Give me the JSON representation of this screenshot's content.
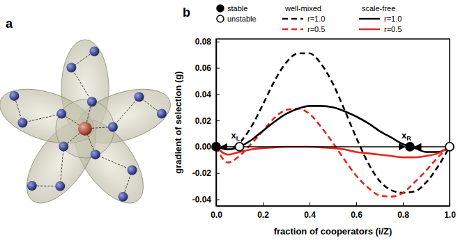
{
  "diagram": {
    "label": "a"
  },
  "chart_data": {
    "type": "line",
    "panel_label": "b",
    "x_label": "fraction of cooperators (i/Z)",
    "y_label": "gradient of selection (g)",
    "x": [
      0,
      0.05,
      0.1,
      0.15,
      0.2,
      0.25,
      0.3,
      0.35,
      0.4,
      0.45,
      0.5,
      0.55,
      0.6,
      0.65,
      0.7,
      0.75,
      0.8,
      0.85,
      0.9,
      0.95,
      1
    ],
    "groups": [
      "well-mixed",
      "scale-free"
    ],
    "series": [
      {
        "name": "r=1.0",
        "group": "well-mixed",
        "color": "#000000",
        "line_style": "dashed",
        "values": [
          0,
          -0.002,
          0.003,
          0.015,
          0.032,
          0.05,
          0.064,
          0.071,
          0.071,
          0.063,
          0.048,
          0.028,
          0.007,
          -0.012,
          -0.026,
          -0.033,
          -0.035,
          -0.034,
          -0.027,
          -0.015,
          0
        ]
      },
      {
        "name": "r=0.5",
        "group": "well-mixed",
        "color": "#e8231a",
        "line_style": "dashed",
        "values": [
          0,
          -0.012,
          -0.007,
          0.002,
          0.012,
          0.022,
          0.028,
          0.029,
          0.025,
          0.015,
          0.003,
          -0.01,
          -0.022,
          -0.031,
          -0.037,
          -0.038,
          -0.035,
          -0.027,
          -0.018,
          -0.008,
          0
        ]
      },
      {
        "name": "r=1.0",
        "group": "scale-free",
        "color": "#000000",
        "line_style": "solid",
        "values": [
          0,
          -0.002,
          0,
          0.005,
          0.012,
          0.019,
          0.025,
          0.029,
          0.031,
          0.031,
          0.03,
          0.027,
          0.023,
          0.018,
          0.012,
          0.007,
          0.002,
          -0.001,
          -0.004,
          -0.004,
          0
        ]
      },
      {
        "name": "r=0.5",
        "group": "scale-free",
        "color": "#e8231a",
        "line_style": "solid",
        "values": [
          0,
          -0.006,
          -0.004,
          -0.002,
          -0.001,
          -0.0005,
          0,
          0,
          0,
          -0.0005,
          -0.001,
          -0.002,
          -0.004,
          -0.005,
          -0.006,
          -0.007,
          -0.008,
          -0.008,
          -0.007,
          -0.005,
          0
        ]
      }
    ],
    "fixed_point_types": [
      {
        "name": "stable",
        "marker": "filled"
      },
      {
        "name": "unstable",
        "marker": "open"
      }
    ],
    "fixed_points": [
      {
        "x": 0,
        "y": 0,
        "stability": "stable"
      },
      {
        "x": 0.1,
        "y": 0,
        "stability": "unstable",
        "label": "x",
        "subscript": "L"
      },
      {
        "x": 0.83,
        "y": 0,
        "stability": "stable",
        "label": "x",
        "subscript": "R"
      },
      {
        "x": 1,
        "y": 0,
        "stability": "unstable"
      }
    ],
    "xlim": [
      0,
      1
    ],
    "ylim": [
      -0.045,
      0.082
    ],
    "xticks": [
      {
        "value": 0,
        "label": "0.0"
      },
      0.2,
      0.4,
      0.6,
      0.8,
      {
        "value": 1,
        "label": "1.0"
      }
    ],
    "yticks": [
      -0.04,
      -0.02,
      {
        "value": 0,
        "label": "0.00"
      },
      0.02,
      0.04,
      0.06,
      0.08
    ],
    "legend": "top",
    "grid": false
  }
}
